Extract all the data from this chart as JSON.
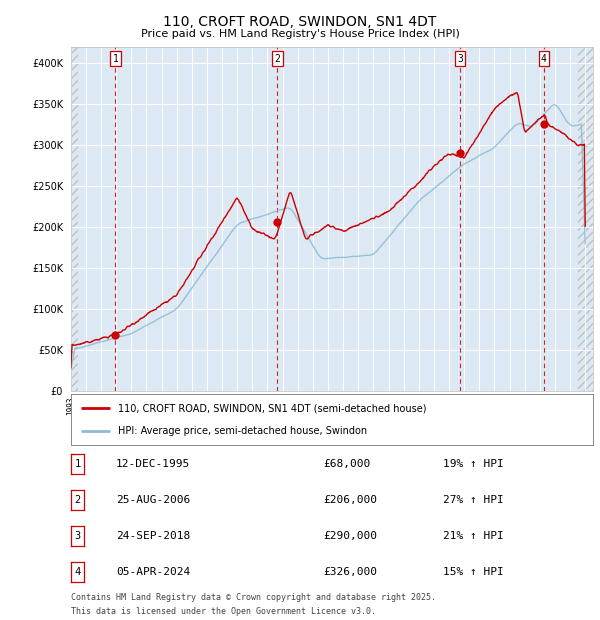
{
  "title": "110, CROFT ROAD, SWINDON, SN1 4DT",
  "subtitle": "Price paid vs. HM Land Registry's House Price Index (HPI)",
  "background_color": "#ffffff",
  "plot_bg_color": "#dce9f5",
  "hpi_line_color": "#8fbcd4",
  "price_line_color": "#cc0000",
  "marker_color": "#cc0000",
  "vline_color": "#cc0000",
  "ylim": [
    0,
    420000
  ],
  "yticks": [
    0,
    50000,
    100000,
    150000,
    200000,
    250000,
    300000,
    350000,
    400000
  ],
  "xlim_start": 1993.0,
  "xlim_end": 2027.5,
  "sale_dates": [
    1995.95,
    2006.65,
    2018.73,
    2024.27
  ],
  "sale_prices": [
    68000,
    206000,
    290000,
    326000
  ],
  "sale_labels": [
    "1",
    "2",
    "3",
    "4"
  ],
  "sale_date_strings": [
    "12-DEC-1995",
    "25-AUG-2006",
    "24-SEP-2018",
    "05-APR-2024"
  ],
  "sale_price_strings": [
    "£68,000",
    "£206,000",
    "£290,000",
    "£326,000"
  ],
  "sale_hpi_strings": [
    "19% ↑ HPI",
    "27% ↑ HPI",
    "21% ↑ HPI",
    "15% ↑ HPI"
  ],
  "legend_line1": "110, CROFT ROAD, SWINDON, SN1 4DT (semi-detached house)",
  "legend_line2": "HPI: Average price, semi-detached house, Swindon",
  "footer_line1": "Contains HM Land Registry data © Crown copyright and database right 2025.",
  "footer_line2": "This data is licensed under the Open Government Licence v3.0."
}
